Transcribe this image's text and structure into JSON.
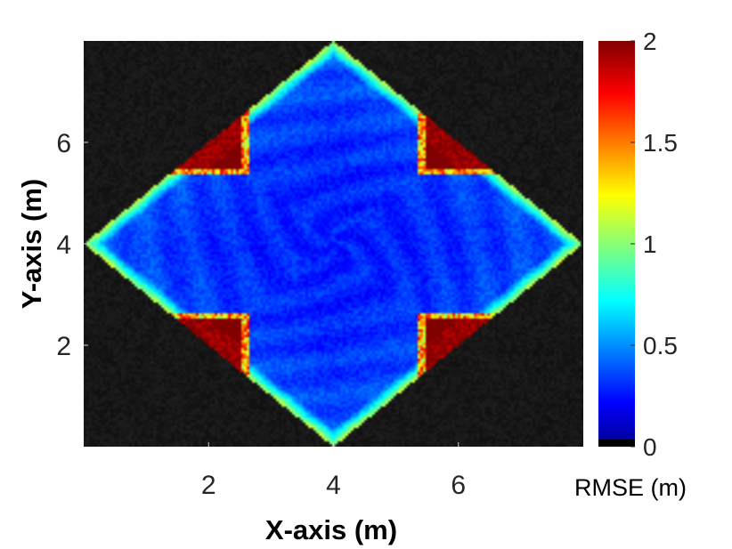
{
  "chart_data": {
    "type": "heatmap",
    "title": "",
    "xlabel": "X-axis (m)",
    "ylabel": "Y-axis (m)",
    "xlim": [
      0,
      8
    ],
    "ylim": [
      0,
      8
    ],
    "xticks": [
      2,
      4,
      6
    ],
    "yticks": [
      2,
      4,
      6
    ],
    "grid": false,
    "colormap": "jet",
    "colorbar": {
      "label": "RMSE (m)",
      "limits": [
        0,
        2
      ],
      "ticks": [
        0,
        0.5,
        1,
        1.5,
        2
      ],
      "tick_labels": [
        "0",
        "0.5",
        "1",
        "1.5",
        "2"
      ],
      "placement": "right"
    },
    "background_color": "#000000",
    "regions": [
      {
        "region": "central cross (|x-4| <= 1.35 or |y-4| <= 1.35) inside the diamond",
        "rmse_approx": 0.2
      },
      {
        "region": "lobe ends near (4,0.4), (4,7.6), (0.4,4), (7.6,4)",
        "rmse_approx": 0.6
      },
      {
        "region": "diamond edges near lobe tips",
        "rmse_approx": 1.0
      },
      {
        "region": "diamond corners outside the cross",
        "rmse_approx": 2.0
      },
      {
        "region": "outside the diamond |x-4|+|y-4| > 4",
        "rmse_approx": 0
      }
    ]
  }
}
